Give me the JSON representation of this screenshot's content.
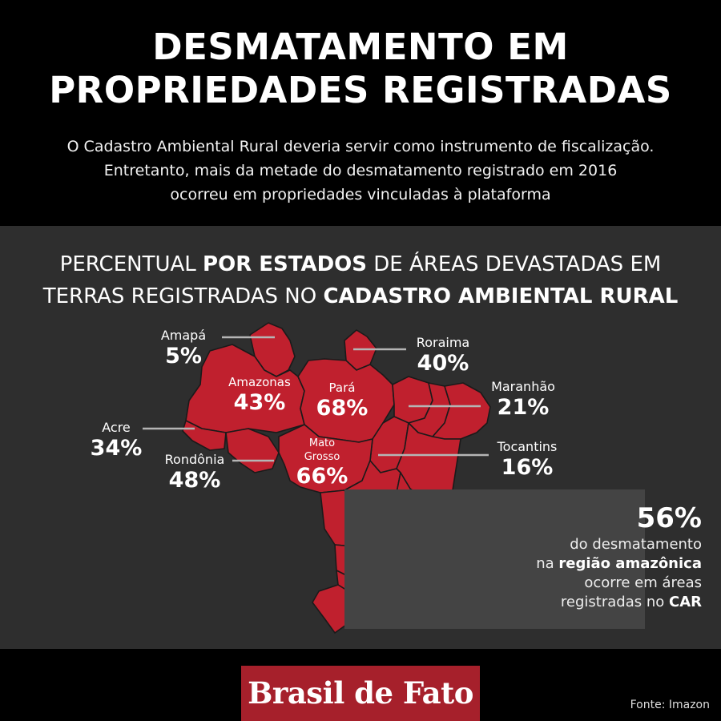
{
  "title_line1": "DESMATAMENTO EM",
  "title_line2": "PROPRIEDADES REGISTRADAS",
  "intro_line1": "O Cadastro Ambiental Rural deveria servir como instrumento de fiscalização.",
  "intro_line2": "Entretanto, mais da metade do desmatamento registrado em 2016",
  "intro_line3": "ocorreu em propriedades vinculadas à plataforma",
  "subtitle": {
    "l1_a": "PERCENTUAL ",
    "l1_b": "POR ESTADOS",
    "l1_c": " DE ÁREAS DEVASTADAS EM",
    "l2_a": "TERRAS REGISTRADAS NO ",
    "l2_b": "CADASTRO AMBIENTAL RURAL"
  },
  "states": {
    "amapa": {
      "name": "Amapá",
      "pct": "5%"
    },
    "roraima": {
      "name": "Roraima",
      "pct": "40%"
    },
    "amazonas": {
      "name": "Amazonas",
      "pct": "43%"
    },
    "para": {
      "name": "Pará",
      "pct": "68%"
    },
    "maranhao": {
      "name": "Maranhão",
      "pct": "21%"
    },
    "acre": {
      "name": "Acre",
      "pct": "34%"
    },
    "rondonia": {
      "name": "Rondônia",
      "pct": "48%"
    },
    "mato_grosso_l1": "Mato",
    "mato_grosso_l2": "Grosso",
    "mato_grosso_pct": "66%",
    "tocantins": {
      "name": "Tocantins",
      "pct": "16%"
    }
  },
  "callout": {
    "pct": "56%",
    "l1": "do desmatamento",
    "l2_a": "na ",
    "l2_b": "região amazônica",
    "l3": "ocorre em áreas",
    "l4_a": "registradas no ",
    "l4_b": "CAR"
  },
  "logo": "Brasil de Fato",
  "source": "Fonte: Imazon",
  "colors": {
    "map_red": "#c0202e",
    "panel": "#2e2e2e",
    "logo_bg": "#a6202b"
  }
}
